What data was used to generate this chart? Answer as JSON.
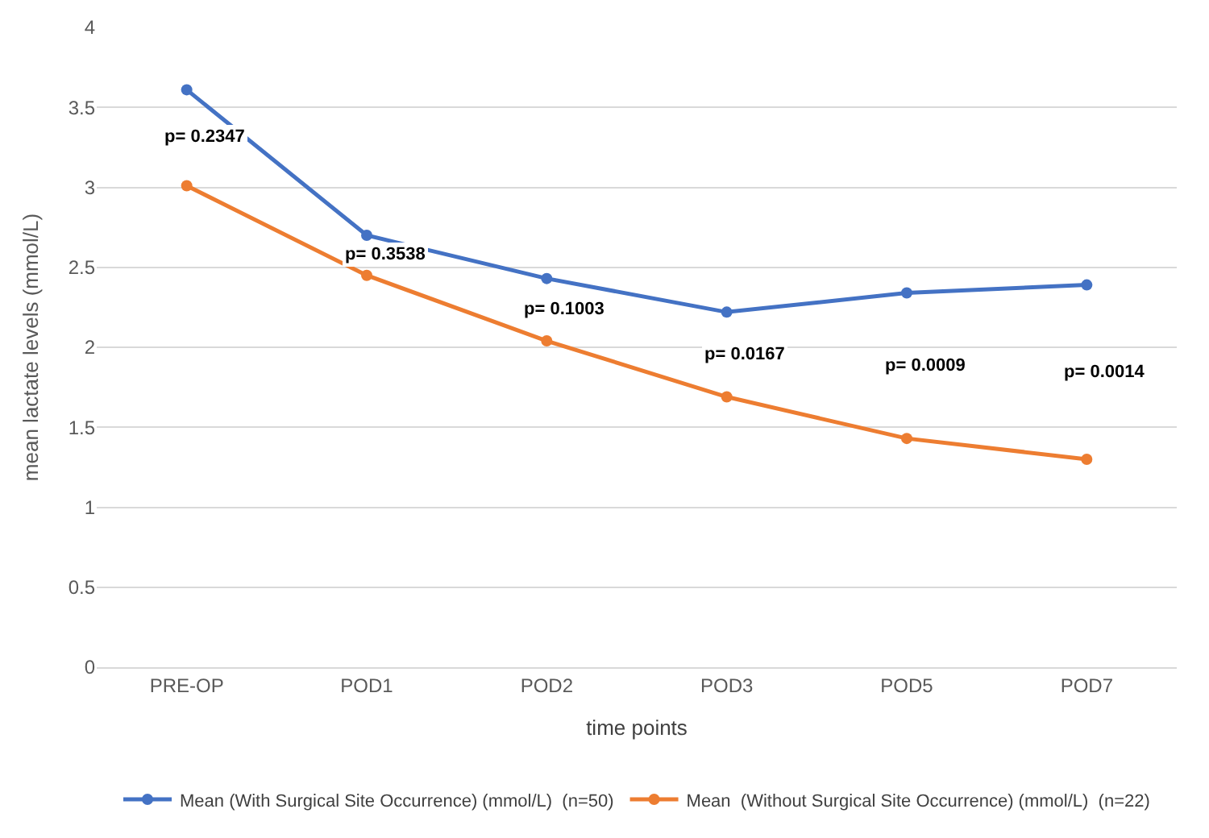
{
  "chart_data": {
    "type": "line",
    "xlabel": "time points",
    "ylabel": "mean lactate levels (mmol/L)",
    "categories": [
      "PRE-OP",
      "POD1",
      "POD2",
      "POD3",
      "POD5",
      "POD7"
    ],
    "series": [
      {
        "name": "Mean (With Surgical Site Occurrence) (mmol/L)  (n=50)",
        "color": "#4472c4",
        "values": [
          3.61,
          2.7,
          2.43,
          2.22,
          2.34,
          2.39
        ]
      },
      {
        "name": "Mean  (Without Surgical Site Occurrence) (mmol/L)  (n=22)",
        "color": "#ed7d31",
        "values": [
          3.01,
          2.45,
          2.04,
          1.69,
          1.43,
          1.3
        ]
      }
    ],
    "annotations": [
      "p= 0.2347",
      "p= 0.3538",
      "p= 0.1003",
      "p= 0.0167",
      "p= 0.0009",
      "p= 0.0014"
    ],
    "ylim": [
      0,
      4
    ],
    "yticks": [
      0,
      0.5,
      1,
      1.5,
      2,
      2.5,
      3,
      3.5,
      4
    ],
    "grid": "y",
    "legend": "bottom",
    "marker": "circle",
    "line_style": "solid"
  }
}
